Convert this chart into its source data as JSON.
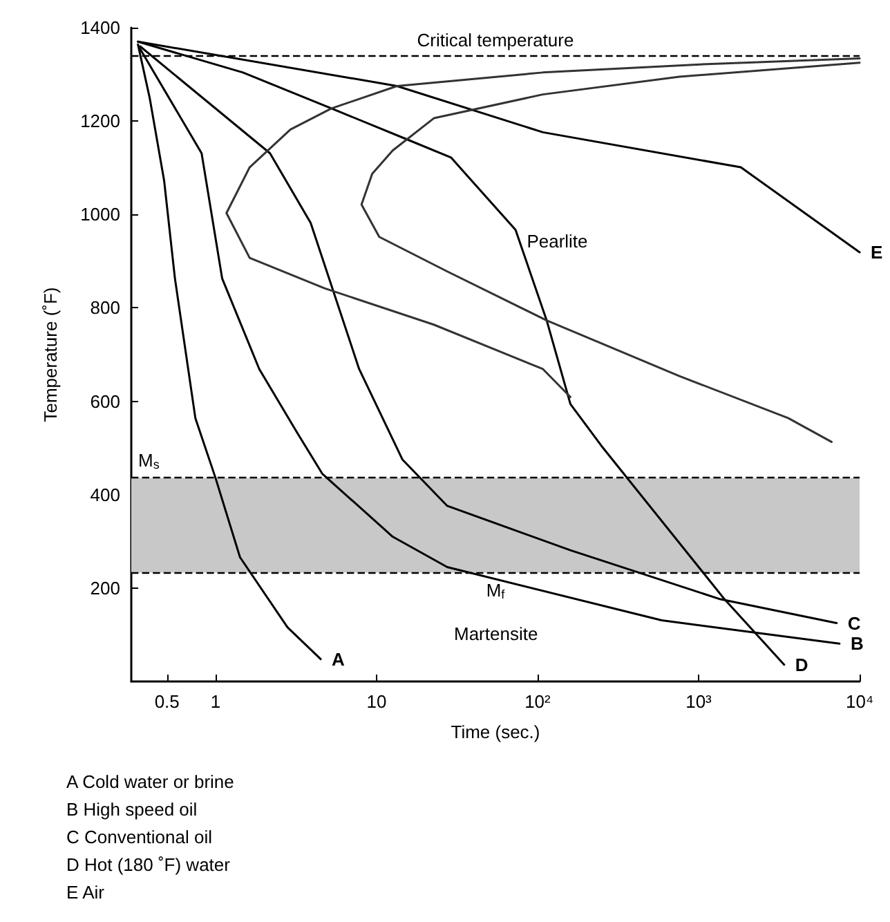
{
  "chart_data": {
    "type": "line",
    "xlabel": "Time (sec.)",
    "ylabel": "Temperature (˚F)",
    "log": "x",
    "xlim": [
      0.3,
      10000
    ],
    "ylim": [
      0,
      1400
    ],
    "xticks": [
      0.5,
      1,
      10,
      {
        "value": 100,
        "label": "10²"
      },
      {
        "value": 1000,
        "label": "10³"
      },
      {
        "value": 10000,
        "label": "10⁴"
      }
    ],
    "yticks": [
      200,
      400,
      600,
      800,
      1000,
      1200,
      1400
    ],
    "grid": false,
    "legend": false,
    "marker": "none",
    "line_style": "solid",
    "series": [
      {
        "name": "A",
        "color": "#000000",
        "x": [
          0.33,
          0.39,
          0.48,
          0.56,
          0.75,
          1,
          1.42,
          2.8,
          4.5
        ],
        "values": [
          1364,
          1250,
          1072,
          863,
          564,
          436,
          266,
          116,
          48
        ]
      },
      {
        "name": "B",
        "color": "#000000",
        "x": [
          0.34,
          0.82,
          1.1,
          1.87,
          3.2,
          4.6,
          12.6,
          27.5,
          590,
          7500
        ],
        "values": [
          1355,
          1131,
          863,
          669,
          534,
          445,
          310,
          245,
          131,
          81
        ]
      },
      {
        "name": "C",
        "color": "#000000",
        "x": [
          0.34,
          2.18,
          3.9,
          7.8,
          14.5,
          27.5,
          160,
          1370,
          7200
        ],
        "values": [
          1360,
          1131,
          982,
          669,
          475,
          376,
          281,
          176,
          125
        ]
      },
      {
        "name": "D",
        "color": "#000000",
        "x": [
          0.33,
          1.48,
          5.25,
          15.4,
          29,
          73,
          114,
          160,
          250,
          1450,
          3400
        ],
        "values": [
          1370,
          1304,
          1227,
          1161,
          1122,
          967,
          773,
          594,
          504,
          176,
          36
        ]
      },
      {
        "name": "E",
        "color": "#000000",
        "x": [
          0.33,
          13.4,
          108,
          1830,
          10000
        ],
        "values": [
          1370,
          1275,
          1176,
          1101,
          919
        ]
      },
      {
        "color": "#333333",
        "x": [
          10000,
          1130,
          108,
          13.4,
          5.25,
          2.92,
          1.63,
          1.17,
          1.63,
          4.76,
          22.7,
          108,
          160
        ],
        "values": [
          1334,
          1322,
          1304,
          1275,
          1227,
          1182,
          1101,
          1003,
          907,
          842,
          764,
          669,
          609
        ]
      },
      {
        "color": "#333333",
        "x": [
          10000,
          760,
          108,
          22.7,
          12.6,
          9.4,
          8.07,
          10.4,
          27.5,
          114,
          760,
          3600,
          6700
        ],
        "values": [
          1325,
          1295,
          1257,
          1206,
          1137,
          1087,
          1021,
          952,
          878,
          773,
          654,
          564,
          513
        ]
      }
    ],
    "ref_lines": [
      {
        "axis": "y",
        "value": 1340,
        "label": "Critical temperature",
        "line_style": "dashed",
        "color": "#000000"
      },
      {
        "axis": "y",
        "value": 436,
        "label": "M$_{s}$",
        "line_style": "dashed",
        "color": "#000000"
      },
      {
        "axis": "y",
        "value": 233,
        "label": "M$_{f}$",
        "line_style": "dashed",
        "color": "#000000"
      }
    ],
    "bands": [
      {
        "axis": "y",
        "from": 233,
        "to": 436,
        "color": "#c8c8c8"
      }
    ],
    "annotations": [
      "Pearlite",
      "Martensite",
      "A Cold water or brine",
      "B High speed oil",
      "C Conventional oil",
      "D Hot (180 ˚F) water",
      "E Air"
    ]
  }
}
